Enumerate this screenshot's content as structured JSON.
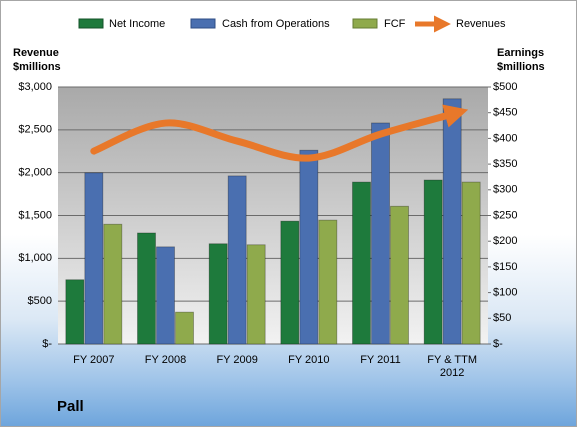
{
  "chart_data": {
    "type": "bar",
    "title": "Pall",
    "ylabel": "Revenue $millions",
    "y2label": "Earnings $millions",
    "categories": [
      "FY 2007",
      "FY 2008",
      "FY 2009",
      "FY 2010",
      "FY 2011",
      "FY & TTM 2012"
    ],
    "series": [
      {
        "name": "Net Income",
        "color": "#1e7a3c",
        "axis": "y2",
        "values": [
          125,
          216,
          195,
          239,
          315,
          319
        ]
      },
      {
        "name": "Cash from Operations",
        "color": "#4a6fb0",
        "axis": "y2",
        "values": [
          333,
          189,
          327,
          377,
          430,
          477
        ]
      },
      {
        "name": "FCF",
        "color": "#8faa4c",
        "axis": "y2",
        "values": [
          233,
          62,
          193,
          241,
          268,
          315
        ]
      },
      {
        "name": "Revenues",
        "color": "#e8782a",
        "type": "line",
        "values": [
          2252,
          2579,
          2369,
          2170,
          2450,
          2684
        ]
      }
    ],
    "ylim": [
      0,
      3000
    ],
    "yticks": [
      {
        "value": 0,
        "label": "$-"
      },
      {
        "value": 500,
        "label": "$500"
      },
      {
        "value": 1000,
        "label": "$1,000"
      },
      {
        "value": 1500,
        "label": "$1,500"
      },
      {
        "value": 2000,
        "label": "$2,000"
      },
      {
        "value": 2500,
        "label": "$2,500"
      },
      {
        "value": 3000,
        "label": "$3,000"
      }
    ],
    "y2lim": [
      0,
      500
    ],
    "y2ticks": [
      {
        "value": 0,
        "label": "$-"
      },
      {
        "value": 50,
        "label": "$50"
      },
      {
        "value": 100,
        "label": "$100"
      },
      {
        "value": 150,
        "label": "$150"
      },
      {
        "value": 200,
        "label": "$200"
      },
      {
        "value": 250,
        "label": "$250"
      },
      {
        "value": 300,
        "label": "$300"
      },
      {
        "value": 350,
        "label": "$350"
      },
      {
        "value": 400,
        "label": "$400"
      },
      {
        "value": 450,
        "label": "$450"
      },
      {
        "value": 500,
        "label": "$500"
      }
    ],
    "grid": true
  }
}
